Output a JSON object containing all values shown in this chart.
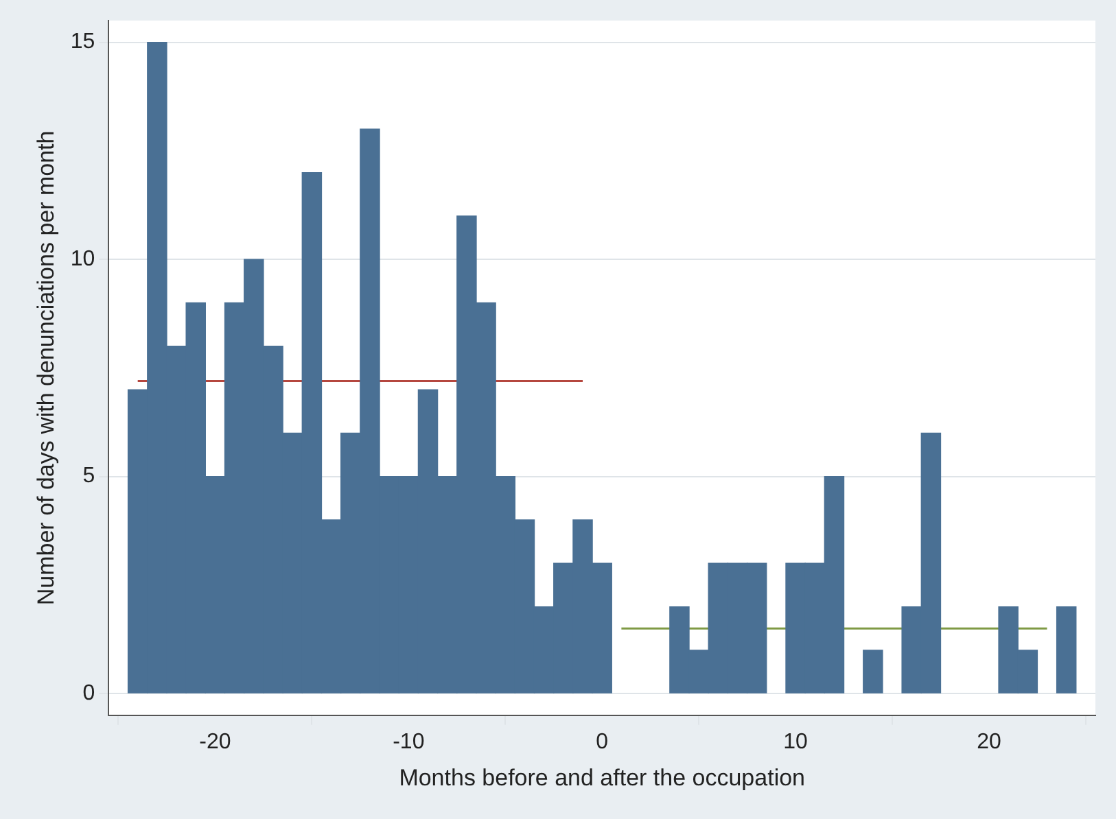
{
  "chart_data": {
    "type": "bar",
    "xlabel": "Months before and after the occupation",
    "ylabel": "Number of days with denunciations per month",
    "x": [
      -24,
      -23,
      -22,
      -21,
      -20,
      -19,
      -18,
      -17,
      -16,
      -15,
      -14,
      -13,
      -12,
      -11,
      -10,
      -9,
      -8,
      -7,
      -6,
      -5,
      -4,
      -3,
      -2,
      -1,
      0,
      4,
      5,
      6,
      7,
      8,
      10,
      11,
      12,
      14,
      16,
      17,
      21,
      22,
      24
    ],
    "series": [
      {
        "color": "#4a7094",
        "values": [
          7,
          15,
          8,
          9,
          5,
          9,
          10,
          8,
          6,
          12,
          4,
          6,
          13,
          5,
          5,
          7,
          5,
          11,
          9,
          5,
          4,
          2,
          3,
          4,
          3,
          2,
          1,
          3,
          3,
          3,
          3,
          3,
          5,
          1,
          2,
          6,
          2,
          1,
          2
        ]
      },
      {
        "type": "line",
        "color": "#b5473f",
        "x": [
          -24,
          -1
        ],
        "values": [
          7.2,
          7.2
        ]
      },
      {
        "type": "line",
        "color": "#7f9a45",
        "x": [
          1,
          23
        ],
        "values": [
          1.5,
          1.5
        ]
      }
    ],
    "xlim": [
      -25.5,
      25.5
    ],
    "xticks": [
      -20,
      -10,
      0,
      10,
      20
    ],
    "ylim": [
      -0.5,
      15.5
    ],
    "yticks": [
      0,
      5,
      10,
      15
    ],
    "grid": "y",
    "legend": false,
    "marker": "none",
    "line_style": "solid"
  }
}
